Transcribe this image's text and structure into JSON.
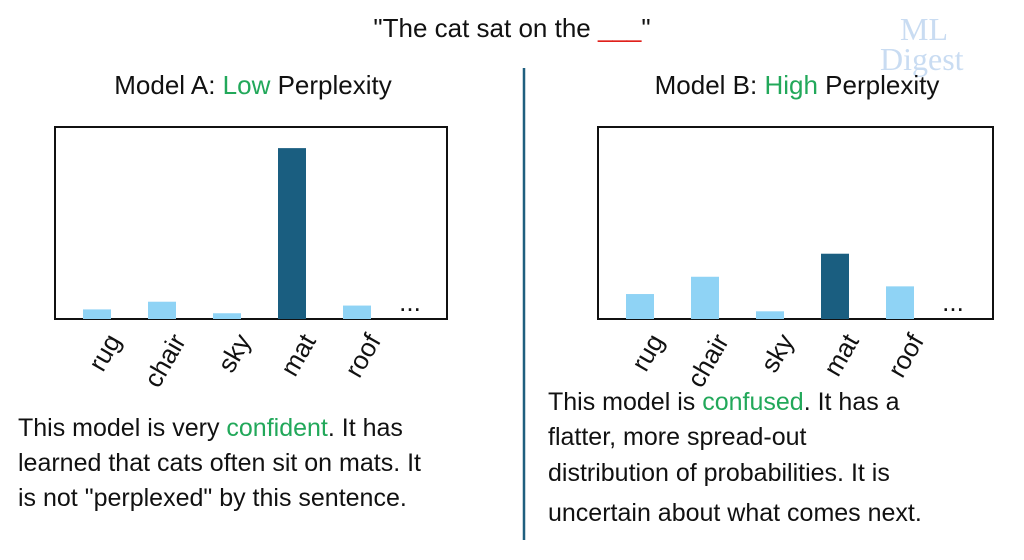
{
  "header": {
    "open": "\"The cat sat on the ",
    "blank": "___",
    "close": "\""
  },
  "logo": [
    "ML",
    "Digest"
  ],
  "chart_data": [
    {
      "type": "bar",
      "title": [
        "Model A: ",
        "Low",
        " Perplexity"
      ],
      "categories": [
        "rug",
        "chair",
        "sky",
        "mat",
        "roof"
      ],
      "more": "...",
      "values": [
        5,
        9,
        3,
        89,
        7
      ],
      "colors": [
        "#8fd3f5",
        "#8fd3f5",
        "#8fd3f5",
        "#1a5e80",
        "#8fd3f5"
      ],
      "ylim": [
        0,
        100
      ],
      "description": [
        [
          "This model is very ",
          "confident",
          ". It has"
        ],
        "learned that cats often sit on mats. It",
        "is not \"perplexed\" by this sentence."
      ]
    },
    {
      "type": "bar",
      "title": [
        "Model B: ",
        "High",
        " Perplexity"
      ],
      "categories": [
        "rug",
        "chair",
        "sky",
        "mat",
        "roof"
      ],
      "more": "...",
      "values": [
        13,
        22,
        4,
        34,
        17
      ],
      "colors": [
        "#8fd3f5",
        "#8fd3f5",
        "#8fd3f5",
        "#1a5e80",
        "#8fd3f5"
      ],
      "ylim": [
        0,
        100
      ],
      "description": [
        [
          "This model is ",
          "confused",
          ". It has a"
        ],
        "flatter, more spread-out",
        "distribution of probabilities. It is",
        "uncertain about what comes next."
      ]
    }
  ]
}
